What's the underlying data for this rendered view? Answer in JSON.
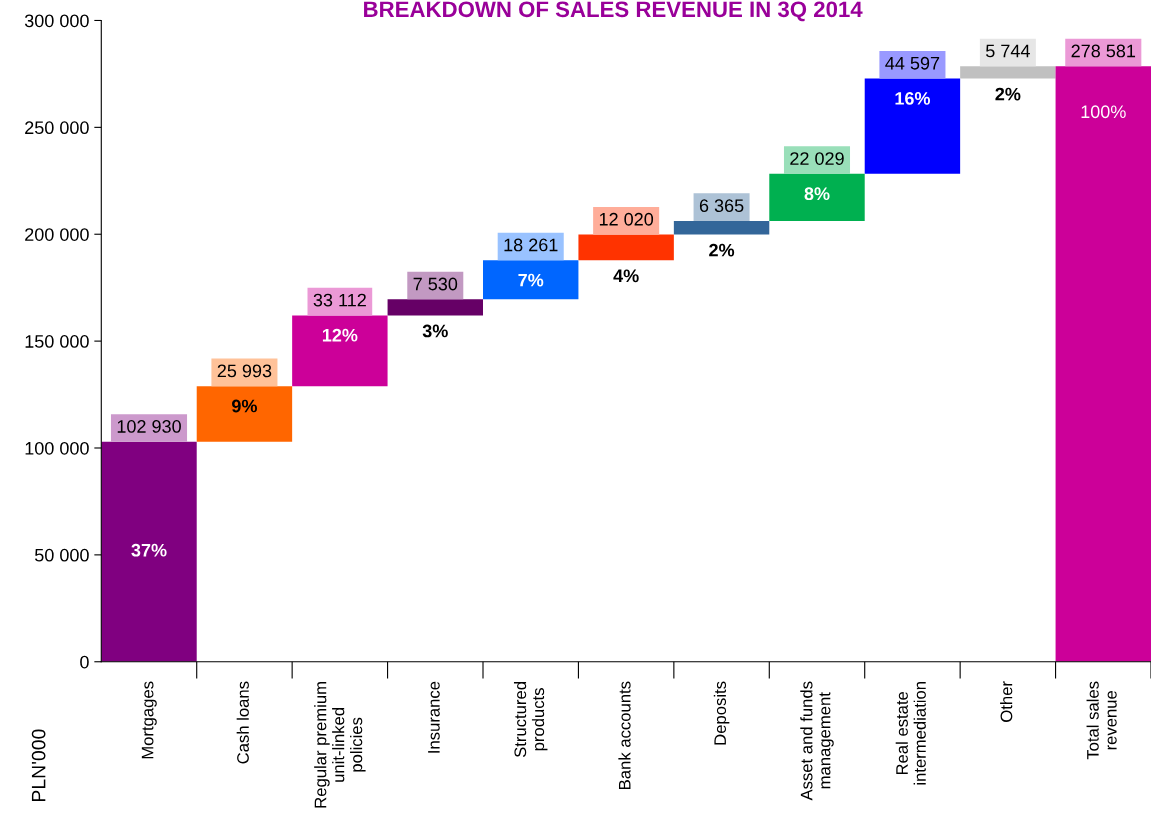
{
  "chart_data": {
    "type": "bar",
    "title": "BREAKDOWN OF SALES REVENUE IN 3Q 2014",
    "ylabel": "PLN'000",
    "categories": [
      "Mortgages",
      "Cash loans",
      "Regular premium\nunit-linked\npolicies",
      "Insurance",
      "Structured\nproducts",
      "Bank accounts",
      "Deposits",
      "Asset and funds\nmanagement",
      "Real estate\nintermediation",
      "Other",
      "Total sales\nrevenue"
    ],
    "values": [
      102930,
      25993,
      33112,
      7530,
      18261,
      12020,
      6365,
      22029,
      44597,
      5744,
      278581
    ],
    "base": [
      0,
      102930,
      128923,
      162035,
      169565,
      187826,
      199846,
      206211,
      228240,
      272837,
      0
    ],
    "colors": [
      "#800080",
      "#ff6600",
      "#cc0099",
      "#660066",
      "#0066ff",
      "#ff3300",
      "#336699",
      "#00b050",
      "#0000ff",
      "#c0c0c0",
      "#cc0099"
    ],
    "value_labels": [
      "102 930",
      "25 993",
      "33 112",
      "7 530",
      "18 261",
      "12 020",
      "6 365",
      "22 029",
      "44 597",
      "5 744",
      "278 581"
    ],
    "annotations": [
      "37%",
      "9%",
      "12%",
      "3%",
      "7%",
      "4%",
      "2%",
      "8%",
      "16%",
      "2%",
      "100%"
    ],
    "ylim": [
      0,
      300000
    ],
    "yticks": [
      {
        "value": 0,
        "label": "0"
      },
      {
        "value": 50000,
        "label": "50 000"
      },
      {
        "value": 100000,
        "label": "100 000"
      },
      {
        "value": 150000,
        "label": "150 000"
      },
      {
        "value": 200000,
        "label": "200 000"
      },
      {
        "value": 250000,
        "label": "250 000"
      },
      {
        "value": 300000,
        "label": "300 000"
      }
    ],
    "grid": false,
    "legend": false
  }
}
